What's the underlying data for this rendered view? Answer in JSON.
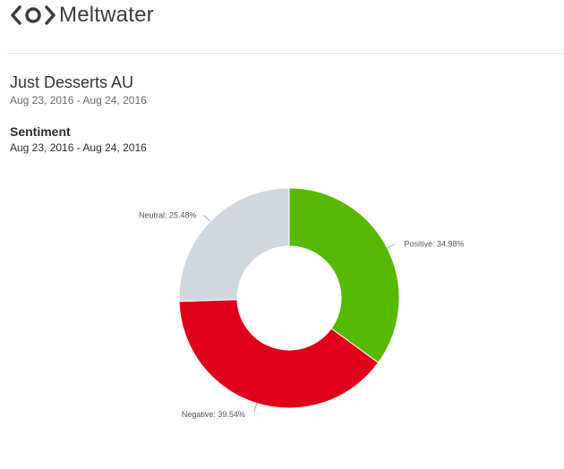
{
  "brand": {
    "name": "Meltwater",
    "logo_icon": "meltwater-logo-icon",
    "logo_color": "#3c3c3c"
  },
  "report": {
    "title": "Just Desserts AU",
    "date_range": "Aug 23, 2016 - Aug 24, 2016"
  },
  "section": {
    "title": "Sentiment",
    "date_range": "Aug 23, 2016 - Aug 24, 2016"
  },
  "chart_data": {
    "type": "pie",
    "donut": true,
    "start_angle_deg": 0,
    "direction": "clockwise",
    "slices": [
      {
        "name": "Positive",
        "value": 34.98,
        "label": "Positive: 34.98%",
        "color": "#56b800"
      },
      {
        "name": "Negative",
        "value": 39.54,
        "label": "Negative: 39.54%",
        "color": "#e0001b"
      },
      {
        "name": "Neutral",
        "value": 25.48,
        "label": "Neutral: 25.48%",
        "color": "#d0d8de"
      }
    ]
  }
}
